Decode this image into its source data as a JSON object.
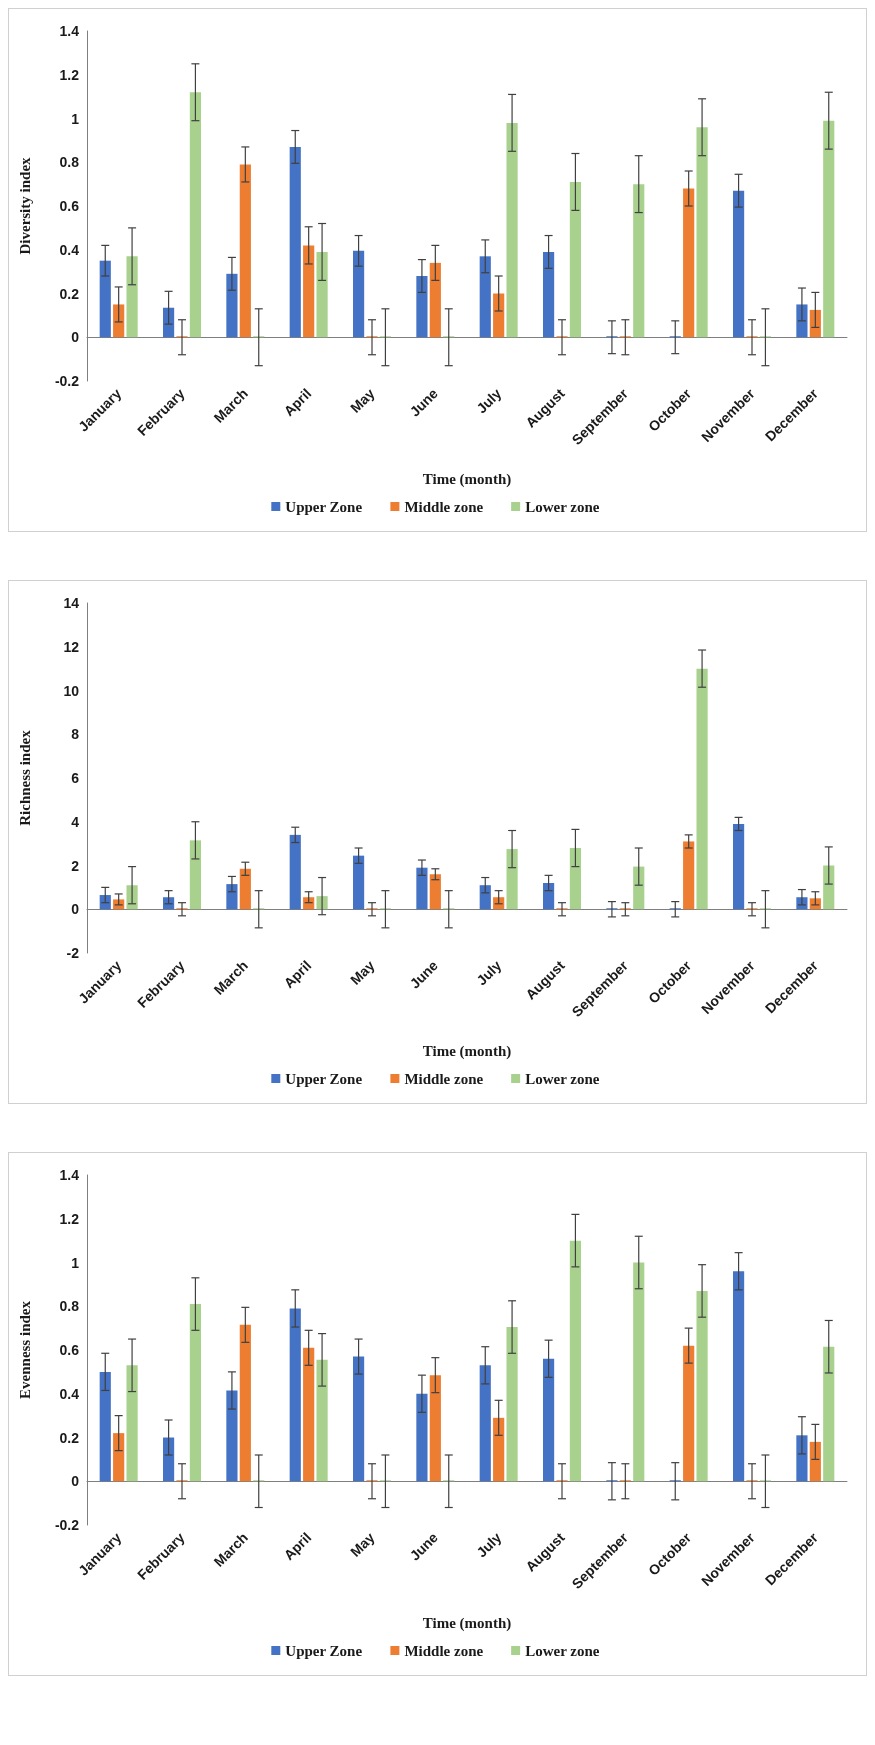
{
  "chart_data": [
    {
      "type": "bar",
      "xlabel": "Time (month)",
      "ylabel": "Diversity index",
      "legend": "bottom",
      "categories": [
        "January",
        "February",
        "March",
        "April",
        "May",
        "June",
        "July",
        "August",
        "September",
        "October",
        "November",
        "December"
      ],
      "ylim": [
        -0.2,
        1.4
      ],
      "yticks": [
        -0.2,
        0,
        0.2,
        0.4,
        0.6,
        0.8,
        1,
        1.2,
        1.4
      ],
      "series": [
        {
          "name": "Upper Zone",
          "color": "#4472c4",
          "values": [
            0.35,
            0.135,
            0.29,
            0.87,
            0.395,
            0.28,
            0.37,
            0.39,
            0,
            0,
            0.67,
            0.15
          ],
          "errors": [
            0.07,
            0.075,
            0.075,
            0.075,
            0.07,
            0.075,
            0.075,
            0.075,
            0.075,
            0.075,
            0.075,
            0.075
          ]
        },
        {
          "name": "Middle zone",
          "color": "#ed7d31",
          "values": [
            0.15,
            0,
            0.79,
            0.42,
            0,
            0.34,
            0.2,
            0,
            0,
            0.68,
            0,
            0.125
          ],
          "errors": [
            0.08,
            0.08,
            0.08,
            0.085,
            0.08,
            0.08,
            0.08,
            0.08,
            0.08,
            0.08,
            0.08,
            0.08
          ]
        },
        {
          "name": "Lower zone",
          "color": "#a9d18e",
          "values": [
            0.37,
            1.12,
            0,
            0.39,
            0,
            0,
            0.98,
            0.71,
            0.7,
            0.96,
            0,
            0.99
          ],
          "errors": [
            0.13,
            0.13,
            0.13,
            0.13,
            0.13,
            0.13,
            0.13,
            0.13,
            0.13,
            0.13,
            0.13,
            0.13
          ]
        }
      ]
    },
    {
      "type": "bar",
      "xlabel": "Time (month)",
      "ylabel": "Richness index",
      "legend": "bottom",
      "categories": [
        "January",
        "February",
        "March",
        "April",
        "May",
        "June",
        "July",
        "August",
        "September",
        "October",
        "November",
        "December"
      ],
      "ylim": [
        -2,
        14
      ],
      "yticks": [
        -2,
        0,
        2,
        4,
        6,
        8,
        10,
        12,
        14
      ],
      "series": [
        {
          "name": "Upper Zone",
          "color": "#4472c4",
          "values": [
            0.65,
            0.55,
            1.15,
            3.4,
            2.45,
            1.9,
            1.1,
            1.2,
            0,
            0,
            3.9,
            0.55
          ],
          "errors": [
            0.35,
            0.3,
            0.35,
            0.35,
            0.35,
            0.35,
            0.35,
            0.35,
            0.35,
            0.35,
            0.3,
            0.35
          ]
        },
        {
          "name": "Middle zone",
          "color": "#ed7d31",
          "values": [
            0.45,
            0,
            1.85,
            0.55,
            0,
            1.6,
            0.55,
            0,
            0,
            3.1,
            0,
            0.5
          ],
          "errors": [
            0.25,
            0.3,
            0.3,
            0.25,
            0.3,
            0.25,
            0.3,
            0.3,
            0.3,
            0.3,
            0.3,
            0.3
          ]
        },
        {
          "name": "Lower zone",
          "color": "#a9d18e",
          "values": [
            1.1,
            3.15,
            0,
            0.6,
            0,
            0,
            2.75,
            2.8,
            1.95,
            11,
            0,
            2
          ],
          "errors": [
            0.85,
            0.85,
            0.85,
            0.85,
            0.85,
            0.85,
            0.85,
            0.85,
            0.85,
            0.85,
            0.85,
            0.85
          ]
        }
      ]
    },
    {
      "type": "bar",
      "xlabel": "Time (month)",
      "ylabel": "Evenness index",
      "legend": "bottom",
      "categories": [
        "January",
        "February",
        "March",
        "April",
        "May",
        "June",
        "July",
        "August",
        "September",
        "October",
        "November",
        "December"
      ],
      "ylim": [
        -0.2,
        1.4
      ],
      "yticks": [
        -0.2,
        0,
        0.2,
        0.4,
        0.6,
        0.8,
        1,
        1.2,
        1.4
      ],
      "series": [
        {
          "name": "Upper Zone",
          "color": "#4472c4",
          "values": [
            0.5,
            0.2,
            0.415,
            0.79,
            0.57,
            0.4,
            0.53,
            0.56,
            0,
            0,
            0.96,
            0.21
          ],
          "errors": [
            0.085,
            0.08,
            0.085,
            0.085,
            0.08,
            0.085,
            0.085,
            0.085,
            0.085,
            0.085,
            0.085,
            0.085
          ]
        },
        {
          "name": "Middle zone",
          "color": "#ed7d31",
          "values": [
            0.22,
            0,
            0.715,
            0.61,
            0,
            0.485,
            0.29,
            0,
            0,
            0.62,
            0,
            0.18
          ],
          "errors": [
            0.08,
            0.08,
            0.08,
            0.08,
            0.08,
            0.08,
            0.08,
            0.08,
            0.08,
            0.08,
            0.08,
            0.08
          ]
        },
        {
          "name": "Lower zone",
          "color": "#a9d18e",
          "values": [
            0.53,
            0.81,
            0,
            0.555,
            0,
            0,
            0.705,
            1.1,
            1,
            0.87,
            0,
            0.615
          ],
          "errors": [
            0.12,
            0.12,
            0.12,
            0.12,
            0.12,
            0.12,
            0.12,
            0.12,
            0.12,
            0.12,
            0.12,
            0.12
          ]
        }
      ]
    }
  ]
}
